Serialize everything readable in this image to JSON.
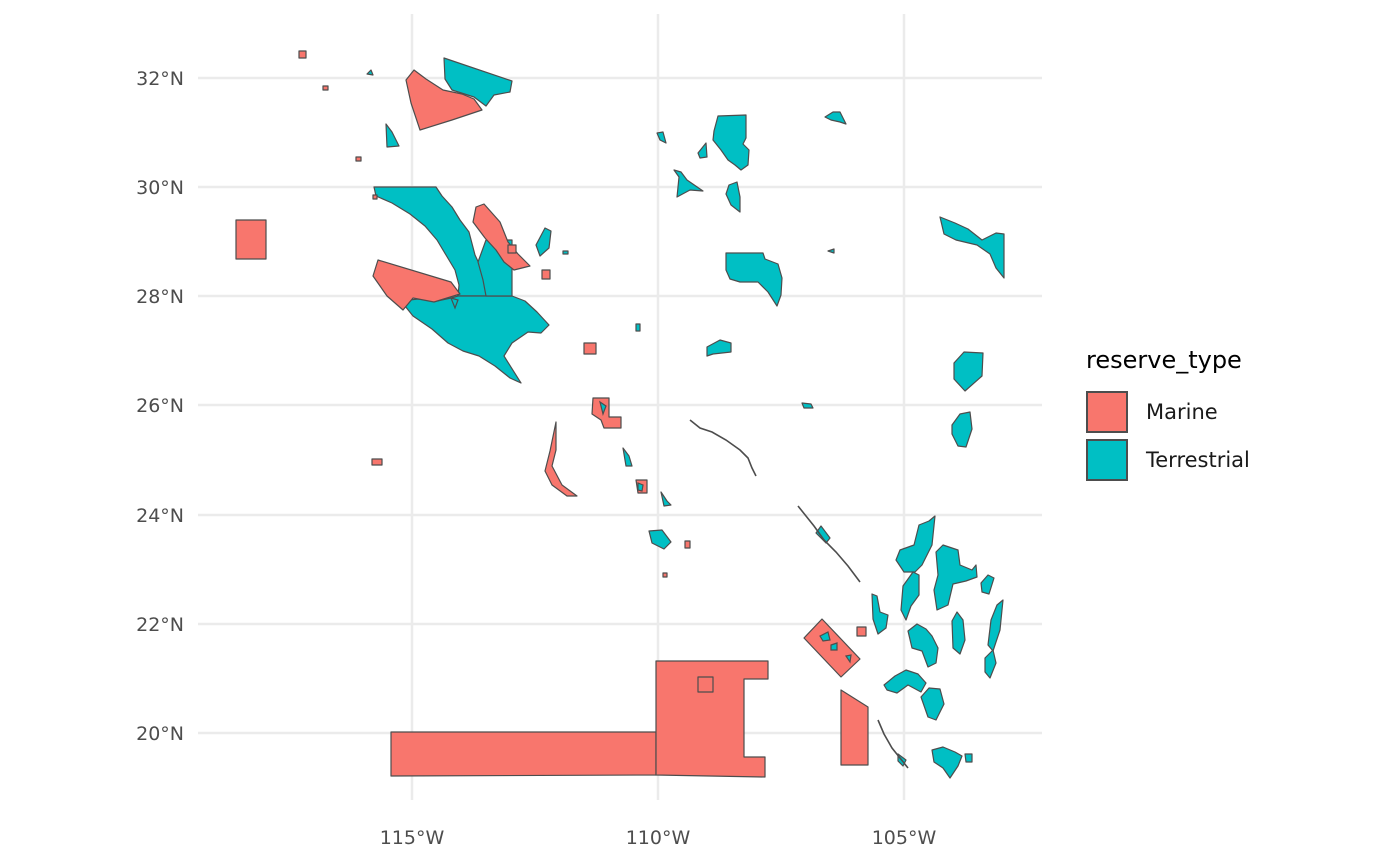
{
  "map": {
    "x_ticks": [
      "115°W",
      "110°W",
      "105°W"
    ],
    "y_ticks": [
      "20°N",
      "22°N",
      "24°N",
      "26°N",
      "28°N",
      "30°N",
      "32°N"
    ],
    "x_ticks_values": [
      -115,
      -110,
      -105
    ],
    "y_ticks_values": [
      20,
      22,
      24,
      26,
      28,
      30,
      32
    ],
    "x_range": [
      -119.1,
      -102.6
    ],
    "y_range": [
      19.0,
      33.0
    ]
  },
  "legend": {
    "title": "reserve_type",
    "items": [
      {
        "label": "Marine",
        "color": "#F8766D"
      },
      {
        "label": "Terrestrial",
        "color": "#00BFC4"
      }
    ]
  },
  "colors": {
    "marine": "#F8766D",
    "terrestrial": "#00BFC4",
    "outline": "#4d4d4d",
    "grid": "#ebebeb"
  }
}
